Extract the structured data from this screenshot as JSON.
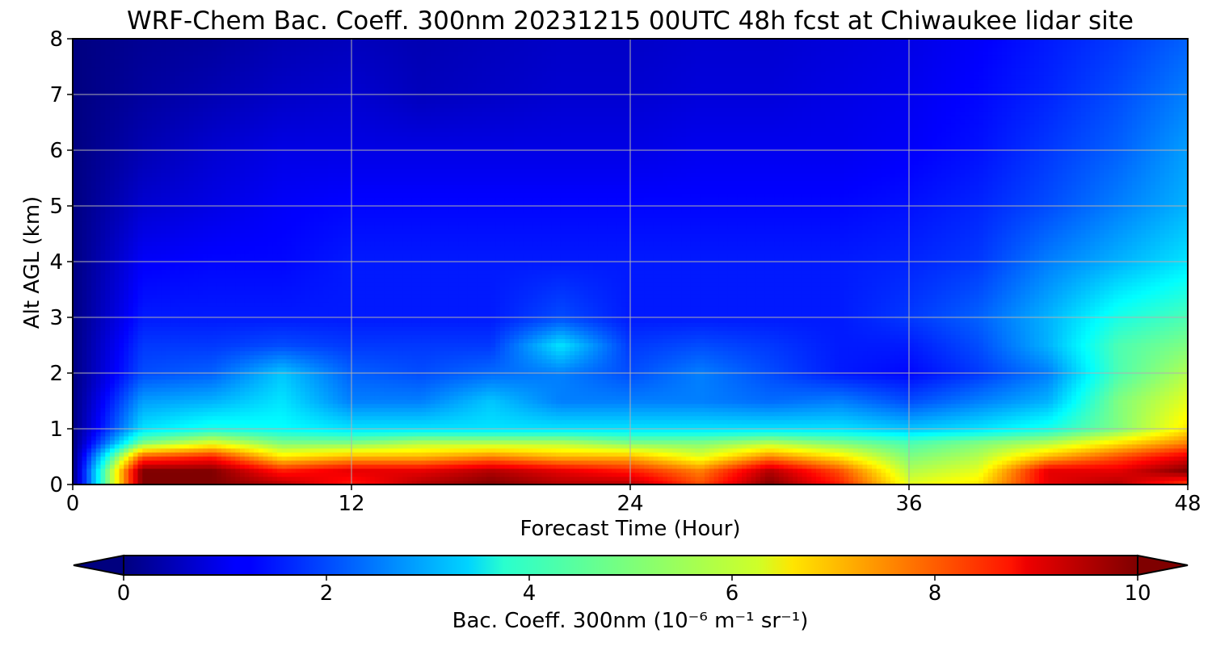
{
  "chart_data": {
    "type": "heatmap",
    "title": "WRF-Chem Bac. Coeff. 300nm  20231215 00UTC 48h fcst at Chiwaukee lidar site",
    "xlabel": "Forecast Time (Hour)",
    "ylabel": "Alt AGL (km)",
    "xlim": [
      0,
      48
    ],
    "ylim": [
      0,
      8
    ],
    "x_ticks": [
      0,
      12,
      24,
      36,
      48
    ],
    "y_ticks": [
      0,
      1,
      2,
      3,
      4,
      5,
      6,
      7,
      8
    ],
    "grid": true,
    "colorbar": {
      "label": "Bac. Coeff. 300nm",
      "units": "(10⁻⁶ m⁻¹ sr⁻¹)",
      "range": [
        0,
        10
      ],
      "ticks": [
        0,
        2,
        4,
        6,
        8,
        10
      ],
      "extend": "both",
      "colormap": "jet",
      "orientation": "horizontal"
    },
    "x": [
      0,
      3,
      6,
      9,
      12,
      15,
      18,
      21,
      24,
      27,
      30,
      33,
      36,
      39,
      42,
      45,
      48
    ],
    "y": [
      0,
      0.25,
      0.5,
      0.75,
      1,
      1.5,
      2,
      2.5,
      3,
      4,
      5,
      6,
      7,
      8
    ],
    "z": [
      [
        0,
        10,
        10,
        9.5,
        8.5,
        9.5,
        10,
        9.5,
        9.5,
        8,
        10,
        8.5,
        6,
        6.5,
        9,
        9.5,
        8
      ],
      [
        0,
        10,
        10,
        8.5,
        9,
        9,
        9.5,
        9,
        8.5,
        7.5,
        9.5,
        8,
        5.5,
        6,
        9,
        9,
        10
      ],
      [
        0,
        8,
        8.5,
        6.5,
        7,
        7,
        7.5,
        7,
        7,
        6,
        7.5,
        6.5,
        5,
        5.5,
        7,
        8,
        9
      ],
      [
        0,
        5,
        6,
        5,
        5,
        5.5,
        5.5,
        5.5,
        5,
        5,
        5.5,
        5,
        4.5,
        5,
        5.5,
        6.5,
        7.5
      ],
      [
        0,
        3.5,
        4,
        3.8,
        3.5,
        3.5,
        3.5,
        3.5,
        3.5,
        3.5,
        3.5,
        3.5,
        3.2,
        3.5,
        4,
        5,
        6.5
      ],
      [
        0,
        2.8,
        3,
        3.5,
        2.5,
        2.5,
        3.2,
        2.5,
        2.5,
        2.5,
        2.3,
        2.5,
        2,
        2.5,
        3,
        5,
        6
      ],
      [
        0,
        2,
        2.2,
        3.2,
        2.2,
        2,
        2.3,
        2.5,
        2,
        2.5,
        2,
        1.5,
        1.3,
        1.8,
        2.5,
        4.5,
        5.5
      ],
      [
        0,
        1.8,
        1.8,
        2,
        1.8,
        1.8,
        1.8,
        3.5,
        1.8,
        2,
        1.8,
        1.5,
        1.5,
        2,
        3,
        4.5,
        5
      ],
      [
        0,
        1.5,
        1.5,
        1.5,
        1.5,
        1.5,
        1.5,
        2,
        1.5,
        1.5,
        1.5,
        1.5,
        1.8,
        2.2,
        3,
        4,
        4.5
      ],
      [
        0,
        1.2,
        1.3,
        1.3,
        1.5,
        1.5,
        1.5,
        1.5,
        1.5,
        1.5,
        1.5,
        1.5,
        1.6,
        1.8,
        2.5,
        3,
        3.5
      ],
      [
        0,
        0.8,
        1,
        1.2,
        1.3,
        1.3,
        1.3,
        1.3,
        1.3,
        1.3,
        1.3,
        1.3,
        1.4,
        1.6,
        2,
        2.5,
        3
      ],
      [
        0,
        0.5,
        0.8,
        1,
        1,
        1,
        1,
        1,
        1,
        1.1,
        1.1,
        1.1,
        1.2,
        1.4,
        1.8,
        2.2,
        2.8
      ],
      [
        0,
        0.3,
        0.5,
        0.7,
        0.8,
        0.6,
        0.7,
        0.8,
        0.8,
        0.9,
        0.9,
        1,
        1.1,
        1.3,
        1.6,
        2,
        2.5
      ],
      [
        0,
        0.2,
        0.3,
        0.5,
        0.6,
        0.5,
        0.6,
        0.7,
        0.7,
        0.8,
        0.8,
        0.9,
        1,
        1.2,
        1.5,
        1.8,
        2.2
      ]
    ]
  }
}
